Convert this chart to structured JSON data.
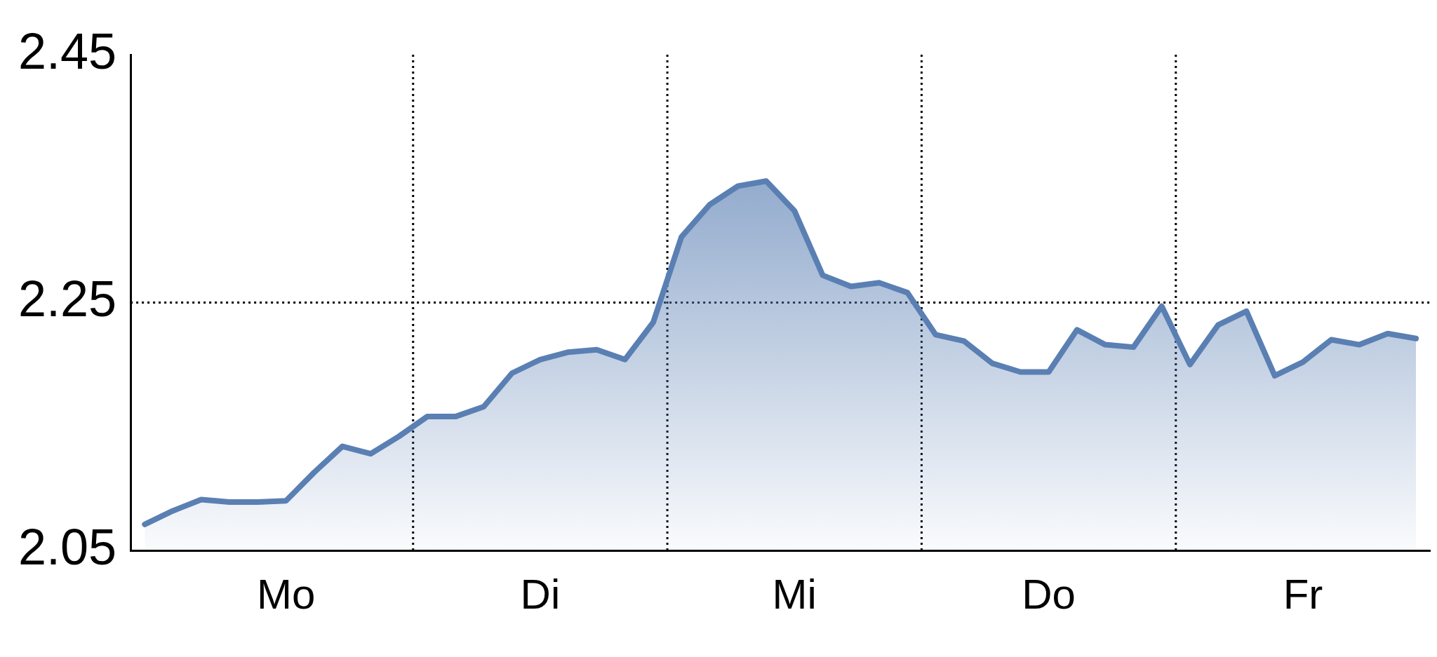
{
  "chart_data": {
    "type": "area",
    "categories": [
      null,
      null,
      null,
      null,
      null,
      "Mo",
      null,
      null,
      null,
      null,
      null,
      null,
      null,
      null,
      "Di",
      null,
      null,
      null,
      null,
      null,
      null,
      null,
      null,
      "Mi",
      null,
      null,
      null,
      null,
      null,
      null,
      null,
      null,
      "Do",
      null,
      null,
      null,
      null,
      null,
      null,
      null,
      null,
      "Fr",
      null,
      null,
      null,
      null
    ],
    "series": [
      {
        "color": "#5a7fb3",
        "values": [
          2.071,
          2.082,
          2.091,
          2.089,
          2.089,
          2.09,
          2.113,
          2.134,
          2.128,
          2.142,
          2.158,
          2.158,
          2.166,
          2.193,
          2.204,
          2.21,
          2.212,
          2.204,
          2.234,
          2.303,
          2.329,
          2.344,
          2.348,
          2.324,
          2.272,
          2.263,
          2.266,
          2.258,
          2.224,
          2.219,
          2.201,
          2.194,
          2.194,
          2.228,
          2.216,
          2.214,
          2.247,
          2.2,
          2.232,
          2.243,
          2.191,
          2.202,
          2.22,
          2.216,
          2.225,
          2.221
        ]
      }
    ],
    "ylim": [
      2.05,
      2.45
    ],
    "yticks": [
      2.05,
      2.25,
      2.45
    ],
    "ref_lines": [
      {
        "axis": "y",
        "value": 2.25,
        "line_style": "dotted"
      }
    ],
    "marker": "none"
  }
}
